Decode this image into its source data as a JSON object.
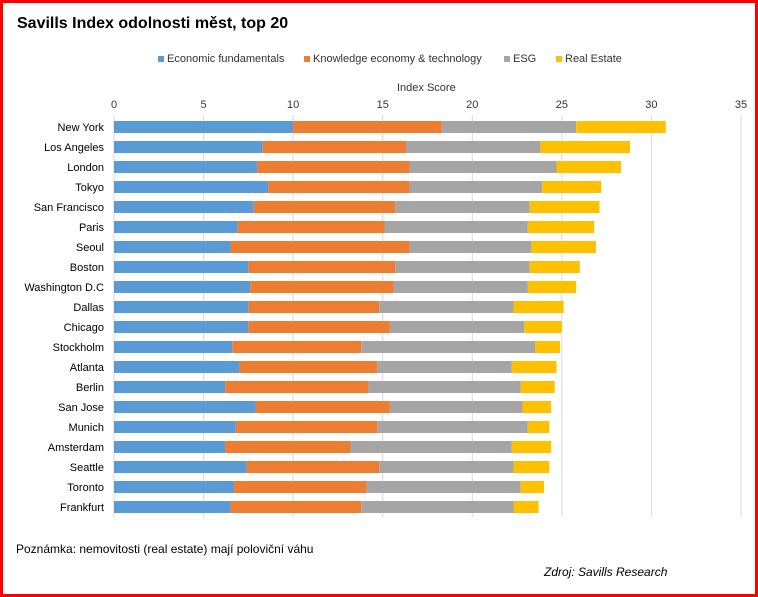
{
  "chart_data": {
    "type": "bar",
    "orientation": "horizontal",
    "stacked": true,
    "title": "Savills Index odolnosti měst, top 20",
    "xlabel": "Index Score",
    "xlim": [
      0,
      35
    ],
    "xticks": [
      0,
      5,
      10,
      15,
      20,
      25,
      30,
      35
    ],
    "grid": true,
    "legend_position": "top",
    "categories": [
      "New York",
      "Los Angeles",
      "London",
      "Tokyo",
      "San Francisco",
      "Paris",
      "Seoul",
      "Boston",
      "Washington D.C",
      "Dallas",
      "Chicago",
      "Stockholm",
      "Atlanta",
      "Berlin",
      "San Jose",
      "Munich",
      "Amsterdam",
      "Seattle",
      "Toronto",
      "Frankfurt"
    ],
    "series": [
      {
        "name": "Economic fundamentals",
        "color": "#5b9bd5",
        "values": [
          10.0,
          8.3,
          8.0,
          8.6,
          7.8,
          6.9,
          6.5,
          7.5,
          7.6,
          7.5,
          7.5,
          6.6,
          7.0,
          6.2,
          7.9,
          6.8,
          6.2,
          7.4,
          6.7,
          6.5
        ]
      },
      {
        "name": "Knowledge economy & technology",
        "color": "#ed7d31",
        "values": [
          8.3,
          8.0,
          8.5,
          7.9,
          7.9,
          8.2,
          10.0,
          8.2,
          8.0,
          7.3,
          7.9,
          7.2,
          7.7,
          8.0,
          7.5,
          7.9,
          7.0,
          7.4,
          7.4,
          7.3
        ]
      },
      {
        "name": "ESG",
        "color": "#a5a5a5",
        "values": [
          7.5,
          7.5,
          8.2,
          7.4,
          7.5,
          8.0,
          6.8,
          7.5,
          7.5,
          7.5,
          7.5,
          9.7,
          7.5,
          8.5,
          7.4,
          8.4,
          9.0,
          7.5,
          8.6,
          8.5
        ]
      },
      {
        "name": "Real Estate",
        "color": "#ffc000",
        "values": [
          5.0,
          5.0,
          3.6,
          3.3,
          3.9,
          3.7,
          3.6,
          2.8,
          2.7,
          2.8,
          2.1,
          1.4,
          2.5,
          1.9,
          1.6,
          1.2,
          2.2,
          2.0,
          1.3,
          1.4
        ]
      }
    ]
  },
  "note": "Poznámka: nemovitosti (real estate) mají poloviční váhu",
  "source": "Zdroj: Savills Research",
  "colors": {
    "frame": "#ff0000",
    "grid": "#d9d9d9"
  }
}
